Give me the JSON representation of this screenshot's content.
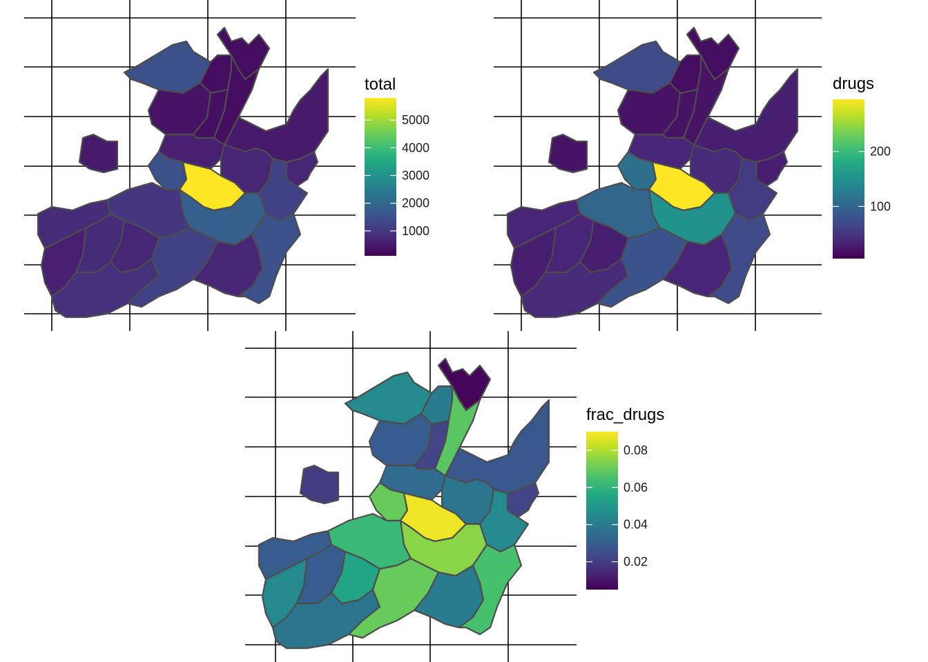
{
  "maps": [
    {
      "legend_title": "total",
      "legend_ticks": [
        "1000",
        "2000",
        "3000",
        "4000",
        "5000"
      ],
      "tick_values": [
        1000,
        2000,
        3000,
        4000,
        5000
      ],
      "range": [
        100,
        5800
      ],
      "region_values": {
        "north_top": 300,
        "north_left": 1500,
        "north_mid_left": 400,
        "north_mid": 300,
        "north_right_strip": 300,
        "north_center": 350,
        "ne_lobe": 500,
        "west_island": 500,
        "center_north": 600,
        "center_east": 700,
        "core": 5800,
        "core_south": 1800,
        "west_core": 1000,
        "west_lower": 800,
        "sw_a": 600,
        "sw_b": 800,
        "sw_c": 700,
        "sw_d": 900,
        "south_center": 1200,
        "south_east": 700,
        "se_lobe": 1500,
        "east_mid": 1200,
        "east_upper": 700,
        "core_west_small": 1500
      }
    },
    {
      "legend_title": "drugs",
      "legend_ticks": [
        "100",
        "200"
      ],
      "tick_values": [
        100,
        200
      ],
      "range": [
        5,
        295
      ],
      "region_values": {
        "north_top": 15,
        "north_left": 70,
        "north_mid_left": 20,
        "north_mid": 15,
        "north_right_strip": 20,
        "north_center": 20,
        "ne_lobe": 30,
        "west_island": 20,
        "center_north": 35,
        "center_east": 40,
        "core": 295,
        "core_south": 150,
        "west_core": 100,
        "west_lower": 35,
        "sw_a": 30,
        "sw_b": 35,
        "sw_c": 30,
        "sw_d": 40,
        "south_center": 80,
        "south_east": 35,
        "se_lobe": 70,
        "east_mid": 55,
        "east_upper": 30,
        "core_west_small": 110
      }
    },
    {
      "legend_title": "frac_drugs",
      "legend_ticks": [
        "0.02",
        "0.04",
        "0.06",
        "0.08"
      ],
      "tick_values": [
        0.02,
        0.04,
        0.06,
        0.08
      ],
      "range": [
        0.005,
        0.09
      ],
      "region_values": {
        "north_top": 0.006,
        "north_left": 0.045,
        "north_mid_left": 0.03,
        "north_mid": 0.04,
        "north_right_strip": 0.068,
        "north_center": 0.022,
        "ne_lobe": 0.028,
        "west_island": 0.02,
        "center_north": 0.035,
        "center_east": 0.038,
        "core": 0.088,
        "core_south": 0.075,
        "west_core": 0.062,
        "west_lower": 0.03,
        "sw_a": 0.045,
        "sw_b": 0.03,
        "sw_c": 0.055,
        "sw_d": 0.038,
        "south_center": 0.07,
        "south_east": 0.04,
        "se_lobe": 0.065,
        "east_mid": 0.045,
        "east_upper": 0.022,
        "core_west_small": 0.07
      }
    }
  ]
}
